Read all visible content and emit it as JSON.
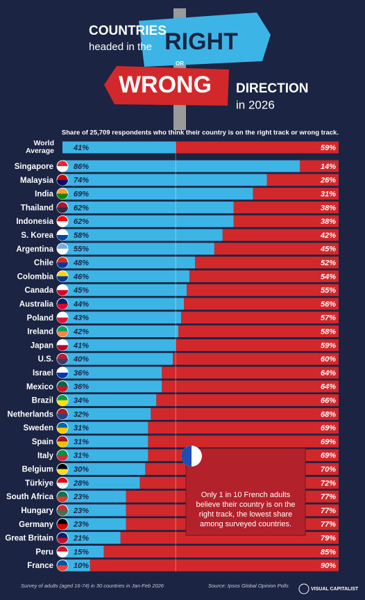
{
  "chart_data": {
    "type": "bar",
    "orientation": "horizontal",
    "stacked": true,
    "title_parts": [
      "COUNTRIES",
      "headed in the",
      "RIGHT",
      "OR",
      "WRONG",
      "DIRECTION",
      "in 2026"
    ],
    "subtitle": "Share of 25,709 respondents who think their country is on the right track or wrong track.",
    "categories": [
      "World Average",
      "Singapore",
      "Malaysia",
      "India",
      "Thailand",
      "Indonesia",
      "S. Korea",
      "Argentina",
      "Chile",
      "Colombia",
      "Canada",
      "Australia",
      "Poland",
      "Ireland",
      "Japan",
      "U.S.",
      "Israel",
      "Mexico",
      "Brazil",
      "Netherlands",
      "Sweden",
      "Spain",
      "Italy",
      "Belgium",
      "Türkiye",
      "South Africa",
      "Hungary",
      "Germany",
      "Great Britain",
      "Peru",
      "France"
    ],
    "series": [
      {
        "color": "#3db4e6",
        "values": [
          41,
          86,
          74,
          69,
          62,
          62,
          58,
          55,
          48,
          46,
          45,
          44,
          43,
          42,
          41,
          40,
          36,
          36,
          34,
          32,
          31,
          31,
          31,
          30,
          28,
          23,
          23,
          23,
          21,
          15,
          10
        ],
        "value_labels": [
          "41%",
          "86%",
          "74%",
          "69%",
          "62%",
          "62%",
          "58%",
          "55%",
          "48%",
          "46%",
          "45%",
          "44%",
          "43%",
          "42%",
          "41%",
          "40%",
          "36%",
          "36%",
          "34%",
          "32%",
          "31%",
          "31%",
          "31%",
          "30%",
          "28%",
          "23%",
          "23%",
          "23%",
          "21%",
          "15%",
          "10%"
        ]
      },
      {
        "color": "#d3282b",
        "values": [
          59,
          14,
          26,
          31,
          38,
          38,
          42,
          45,
          52,
          54,
          55,
          56,
          57,
          58,
          59,
          60,
          64,
          64,
          66,
          68,
          69,
          69,
          69,
          70,
          72,
          77,
          77,
          77,
          79,
          85,
          90
        ],
        "value_labels": [
          "59%",
          "14%",
          "26%",
          "31%",
          "38%",
          "38%",
          "42%",
          "45%",
          "52%",
          "54%",
          "55%",
          "56%",
          "57%",
          "58%",
          "59%",
          "60%",
          "64%",
          "64%",
          "66%",
          "68%",
          "69%",
          "69%",
          "69%",
          "70%",
          "72%",
          "77%",
          "77%",
          "77%",
          "79%",
          "85%",
          "90%"
        ]
      }
    ],
    "xlim": [
      0,
      100
    ],
    "annotation": "Only 1 in 10 French adults believe their country is on the right track, the lowest share among surveyed countries.",
    "footnote": "Survey of adults (aged 16-74) in 30 countries in Jan-Feb 2026",
    "source": "Source: Ipsos Global Opinion Polls",
    "brand": "VISUAL CAPITALIST"
  }
}
